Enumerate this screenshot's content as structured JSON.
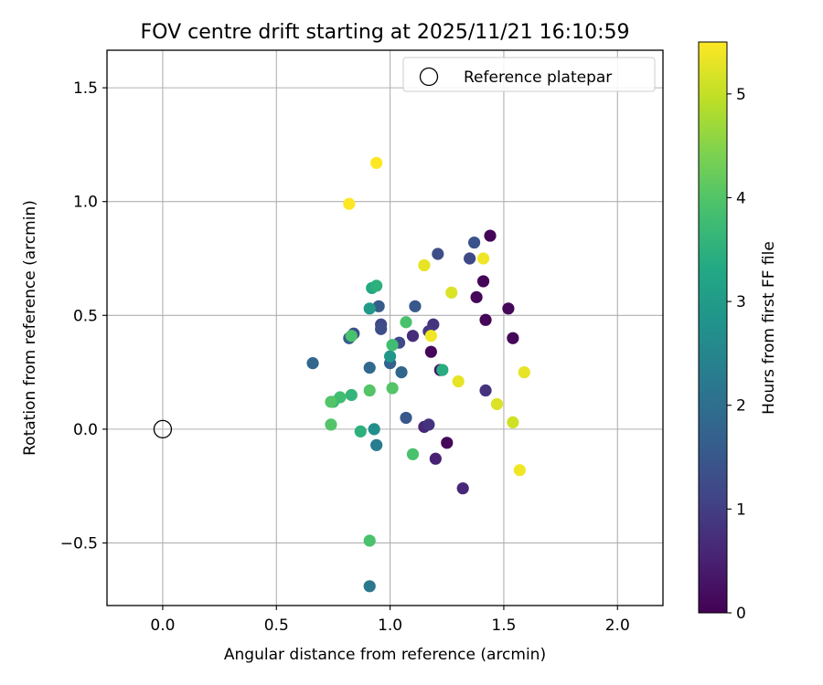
{
  "chart_data": {
    "type": "scatter",
    "title": "FOV centre drift starting at 2025/11/21 16:10:59",
    "xlabel": "Angular distance from reference (arcmin)",
    "ylabel": "Rotation from reference (arcmin)",
    "xlim": [
      -0.245,
      2.2
    ],
    "ylim": [
      -0.775,
      1.665
    ],
    "xticks": [
      0.0,
      0.5,
      1.0,
      1.5,
      2.0
    ],
    "xtick_labels": [
      "0.0",
      "0.5",
      "1.0",
      "1.5",
      "2.0"
    ],
    "yticks": [
      -0.5,
      0.0,
      0.5,
      1.0,
      1.5
    ],
    "ytick_labels": [
      "−0.5",
      "0.0",
      "0.5",
      "1.0",
      "1.5"
    ],
    "grid": true,
    "legend": {
      "placement": "top-right",
      "entries": [
        {
          "label": "Reference platepar",
          "marker": "open-circle",
          "color": "#000000"
        }
      ]
    },
    "reference_point": {
      "x": 0.0,
      "y": 0.0
    },
    "colorbar": {
      "label": "Hours from first FF file",
      "min": 0,
      "max": 5.5,
      "ticks": [
        0,
        1,
        2,
        3,
        4,
        5
      ],
      "tick_labels": [
        "0",
        "1",
        "2",
        "3",
        "4",
        "5"
      ],
      "colormap": "viridis"
    },
    "points": [
      {
        "x": 1.44,
        "y": 0.85,
        "hours": 0.05
      },
      {
        "x": 1.41,
        "y": 0.65,
        "hours": 0.05
      },
      {
        "x": 1.38,
        "y": 0.58,
        "hours": 0.08
      },
      {
        "x": 1.52,
        "y": 0.53,
        "hours": 0.1
      },
      {
        "x": 1.42,
        "y": 0.48,
        "hours": 0.05
      },
      {
        "x": 1.54,
        "y": 0.4,
        "hours": 0.1
      },
      {
        "x": 1.18,
        "y": 0.34,
        "hours": 0.1
      },
      {
        "x": 1.25,
        "y": -0.06,
        "hours": 0.1
      },
      {
        "x": 1.22,
        "y": 0.26,
        "hours": 0.3
      },
      {
        "x": 1.2,
        "y": -0.13,
        "hours": 0.5
      },
      {
        "x": 1.32,
        "y": -0.26,
        "hours": 0.6
      },
      {
        "x": 1.15,
        "y": 0.01,
        "hours": 0.6
      },
      {
        "x": 1.17,
        "y": 0.02,
        "hours": 0.8
      },
      {
        "x": 1.42,
        "y": 0.17,
        "hours": 0.8
      },
      {
        "x": 1.1,
        "y": 0.41,
        "hours": 0.7
      },
      {
        "x": 1.19,
        "y": 0.46,
        "hours": 0.8
      },
      {
        "x": 1.17,
        "y": 0.43,
        "hours": 0.9
      },
      {
        "x": 1.35,
        "y": 0.75,
        "hours": 1.2
      },
      {
        "x": 1.37,
        "y": 0.82,
        "hours": 1.4
      },
      {
        "x": 1.21,
        "y": 0.77,
        "hours": 1.3
      },
      {
        "x": 1.11,
        "y": 0.54,
        "hours": 1.5
      },
      {
        "x": 1.04,
        "y": 0.38,
        "hours": 1.2
      },
      {
        "x": 0.96,
        "y": 0.46,
        "hours": 1.2
      },
      {
        "x": 0.96,
        "y": 0.44,
        "hours": 1.3
      },
      {
        "x": 0.95,
        "y": 0.54,
        "hours": 1.6
      },
      {
        "x": 0.84,
        "y": 0.42,
        "hours": 1.3
      },
      {
        "x": 0.82,
        "y": 0.4,
        "hours": 1.6
      },
      {
        "x": 1.0,
        "y": 0.29,
        "hours": 1.7
      },
      {
        "x": 1.05,
        "y": 0.25,
        "hours": 1.8
      },
      {
        "x": 0.91,
        "y": 0.27,
        "hours": 1.9
      },
      {
        "x": 0.66,
        "y": 0.29,
        "hours": 1.8
      },
      {
        "x": 1.07,
        "y": 0.05,
        "hours": 1.5
      },
      {
        "x": 0.94,
        "y": -0.07,
        "hours": 2.3
      },
      {
        "x": 0.91,
        "y": -0.69,
        "hours": 2.2
      },
      {
        "x": 0.93,
        "y": 0.0,
        "hours": 2.7
      },
      {
        "x": 1.0,
        "y": 0.32,
        "hours": 2.9
      },
      {
        "x": 0.91,
        "y": 0.53,
        "hours": 3.0
      },
      {
        "x": 0.92,
        "y": 0.62,
        "hours": 3.3
      },
      {
        "x": 0.94,
        "y": 0.63,
        "hours": 3.5
      },
      {
        "x": 1.23,
        "y": 0.26,
        "hours": 3.4
      },
      {
        "x": 0.87,
        "y": -0.01,
        "hours": 3.5
      },
      {
        "x": 0.83,
        "y": 0.15,
        "hours": 3.6
      },
      {
        "x": 0.78,
        "y": 0.14,
        "hours": 3.8
      },
      {
        "x": 0.75,
        "y": 0.12,
        "hours": 3.7
      },
      {
        "x": 0.83,
        "y": 0.41,
        "hours": 3.9
      },
      {
        "x": 1.01,
        "y": 0.37,
        "hours": 3.8
      },
      {
        "x": 1.07,
        "y": 0.47,
        "hours": 3.9
      },
      {
        "x": 0.91,
        "y": 0.17,
        "hours": 4.0
      },
      {
        "x": 1.01,
        "y": 0.18,
        "hours": 4.0
      },
      {
        "x": 0.74,
        "y": 0.12,
        "hours": 4.0
      },
      {
        "x": 0.74,
        "y": 0.02,
        "hours": 4.0
      },
      {
        "x": 1.1,
        "y": -0.11,
        "hours": 3.9
      },
      {
        "x": 0.91,
        "y": -0.49,
        "hours": 3.9
      },
      {
        "x": 0.94,
        "y": 1.17,
        "hours": 5.5
      },
      {
        "x": 0.82,
        "y": 0.99,
        "hours": 5.5
      },
      {
        "x": 1.41,
        "y": 0.75,
        "hours": 5.4
      },
      {
        "x": 1.15,
        "y": 0.72,
        "hours": 5.3
      },
      {
        "x": 1.27,
        "y": 0.6,
        "hours": 5.2
      },
      {
        "x": 1.18,
        "y": 0.41,
        "hours": 5.4
      },
      {
        "x": 1.3,
        "y": 0.21,
        "hours": 5.3
      },
      {
        "x": 1.47,
        "y": 0.11,
        "hours": 5.2
      },
      {
        "x": 1.54,
        "y": 0.03,
        "hours": 5.1
      },
      {
        "x": 1.59,
        "y": 0.25,
        "hours": 5.3
      },
      {
        "x": 1.57,
        "y": -0.18,
        "hours": 5.4
      }
    ]
  }
}
